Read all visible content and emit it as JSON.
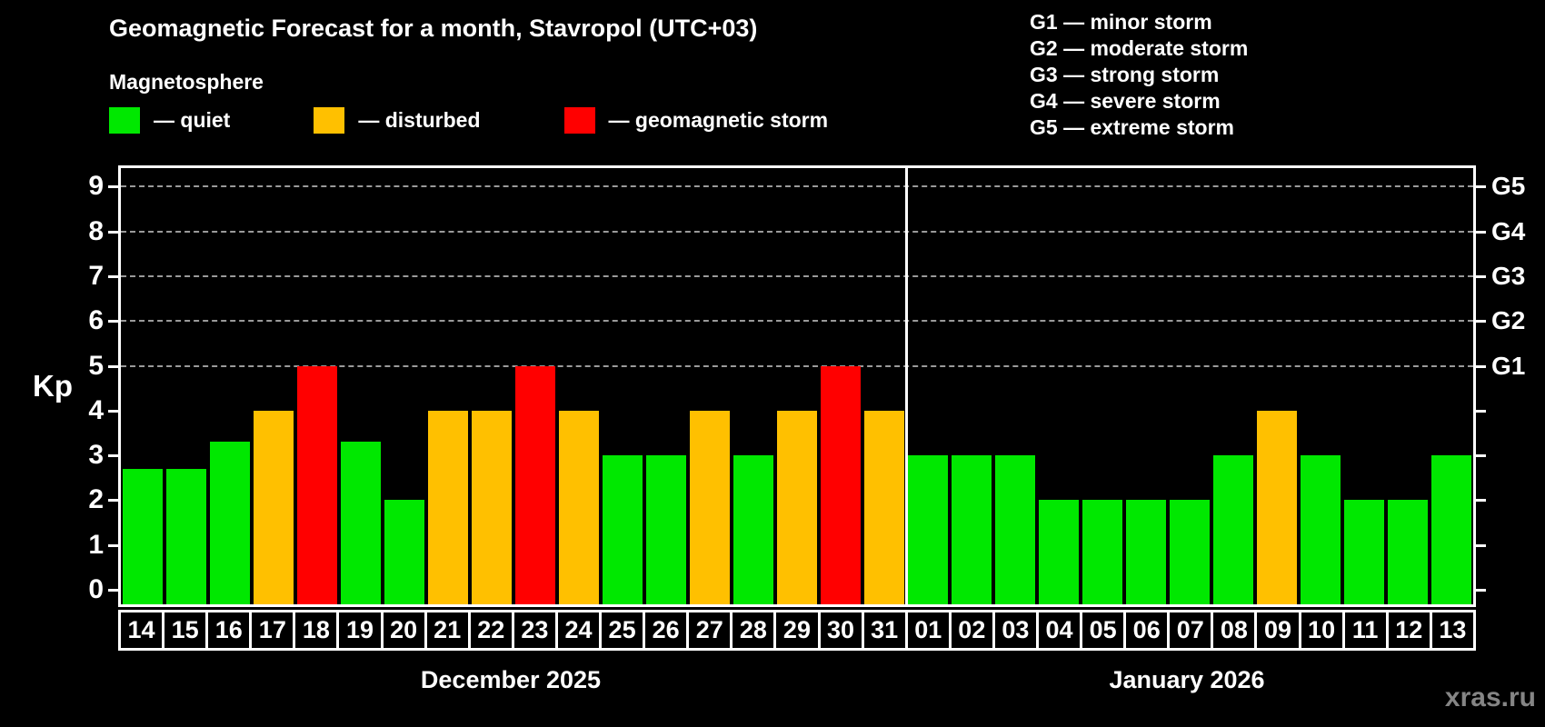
{
  "header": {
    "title": "Geomagnetic Forecast for a month, Stavropol (UTC+03)",
    "subtitle": "Magnetosphere"
  },
  "legend": {
    "items": [
      {
        "name": "quiet",
        "label": "— quiet",
        "color": "#00e800"
      },
      {
        "name": "disturbed",
        "label": "— disturbed",
        "color": "#ffc000"
      },
      {
        "name": "storm",
        "label": "— geomagnetic storm",
        "color": "#ff0000"
      }
    ]
  },
  "storm_scale_legend": {
    "lines": [
      "G1 — minor storm",
      "G2 — moderate storm",
      "G3 — strong storm",
      "G4 — severe storm",
      "G5 — extreme storm"
    ]
  },
  "axis": {
    "y_label": "Kp",
    "y_ticks": [
      0,
      1,
      2,
      3,
      4,
      5,
      6,
      7,
      8,
      9
    ],
    "right_tick_values": [
      0,
      1,
      2,
      3,
      4,
      5,
      6,
      7,
      8,
      9
    ],
    "right_labels": [
      {
        "text": "G1",
        "kp": 5
      },
      {
        "text": "G2",
        "kp": 6
      },
      {
        "text": "G3",
        "kp": 7
      },
      {
        "text": "G4",
        "kp": 8
      },
      {
        "text": "G5",
        "kp": 9
      }
    ],
    "gridlines_kp": [
      5,
      6,
      7,
      8,
      9
    ],
    "gridline_color": "#9a9a9a"
  },
  "chart_data": {
    "type": "bar",
    "title": "Geomagnetic Forecast for a month, Stavropol (UTC+03)",
    "ylabel": "Kp",
    "ylim": [
      0,
      9.4
    ],
    "grid": "dashed horizontal at Kp 5-9",
    "months": [
      {
        "name": "December 2025",
        "days_count": 18
      },
      {
        "name": "January 2026",
        "days_count": 13
      }
    ],
    "categories": [
      "14",
      "15",
      "16",
      "17",
      "18",
      "19",
      "20",
      "21",
      "22",
      "23",
      "24",
      "25",
      "26",
      "27",
      "28",
      "29",
      "30",
      "31",
      "01",
      "02",
      "03",
      "04",
      "05",
      "06",
      "07",
      "08",
      "09",
      "10",
      "11",
      "12",
      "13"
    ],
    "values": [
      2.7,
      2.7,
      3.3,
      4,
      5,
      3.3,
      2,
      4,
      4,
      5,
      4,
      3,
      3,
      4,
      3,
      4,
      5,
      4,
      3,
      3,
      3,
      2,
      2,
      2,
      2,
      3,
      4,
      3,
      2,
      2,
      3
    ],
    "statuses": [
      "quiet",
      "quiet",
      "quiet",
      "disturbed",
      "storm",
      "quiet",
      "quiet",
      "disturbed",
      "disturbed",
      "storm",
      "disturbed",
      "quiet",
      "quiet",
      "disturbed",
      "quiet",
      "disturbed",
      "storm",
      "disturbed",
      "quiet",
      "quiet",
      "quiet",
      "quiet",
      "quiet",
      "quiet",
      "quiet",
      "quiet",
      "disturbed",
      "quiet",
      "quiet",
      "quiet",
      "quiet"
    ],
    "status_colors": {
      "quiet": "#00e800",
      "disturbed": "#ffc000",
      "storm": "#ff0000"
    }
  },
  "watermark": "xras.ru"
}
